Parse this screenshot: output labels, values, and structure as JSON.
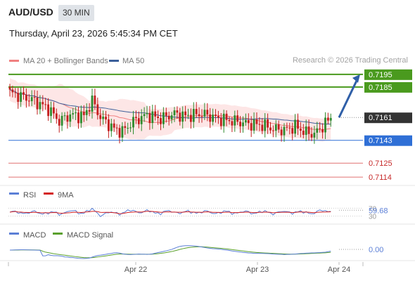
{
  "header": {
    "symbol": "AUD/USD",
    "timeframe": "30 MIN",
    "datetime": "Thursday, April 23, 2026 5:45:34 PM CET"
  },
  "credit": "Research © 2026 Trading Central",
  "legend": {
    "bollinger": "MA 20 + Bollinger Bands",
    "ma50": "MA 50",
    "rsi": "RSI",
    "rsi_ma": "9MA",
    "macd": "MACD",
    "macd_signal": "MACD Signal"
  },
  "colors": {
    "resistance": "#4a9a1e",
    "current": "#333333",
    "support_pivot": "#2f6fd6",
    "support": "#e07070",
    "bollinger_fill": "#fde6e6",
    "ma20": "#f08080",
    "ma50": "#3b5f9a",
    "candle_up": "#2e8b2e",
    "candle_down": "#c41e1e",
    "rsi": "#5b7fd6",
    "rsi_ma": "#d42020",
    "macd": "#5b7fd6",
    "macd_signal": "#5aa02c",
    "arrow": "#2f5fa8"
  },
  "chart_data": [
    {
      "type": "candlestick",
      "panel": "price",
      "x_labels": [
        "Apr 22",
        "Apr 23",
        "Apr 24"
      ],
      "ylim": [
        0.71085,
        0.7201
      ],
      "levels": [
        {
          "value": "0.7195",
          "kind": "resistance"
        },
        {
          "value": "0.7185",
          "kind": "resistance"
        },
        {
          "value": "0.7161",
          "kind": "current"
        },
        {
          "value": "0.7143",
          "kind": "pivot"
        },
        {
          "value": "0.7125",
          "kind": "support"
        },
        {
          "value": "0.7114",
          "kind": "support"
        }
      ],
      "arrow": {
        "from": 0.7161,
        "to": 0.7195,
        "direction": "up"
      }
    },
    {
      "type": "line",
      "panel": "rsi",
      "series": [
        {
          "name": "RSI"
        },
        {
          "name": "9MA"
        }
      ],
      "levels": [
        70,
        30
      ],
      "last_value": "59.68"
    },
    {
      "type": "line",
      "panel": "macd",
      "series": [
        {
          "name": "MACD"
        },
        {
          "name": "MACD Signal"
        }
      ],
      "last_value": "0.00"
    }
  ]
}
